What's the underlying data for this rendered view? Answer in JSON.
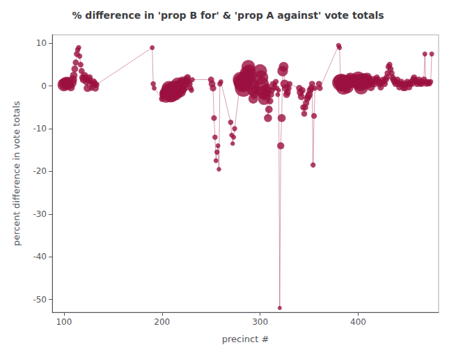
{
  "chart_data": {
    "type": "scatter",
    "title": "% difference in 'prop B for' & 'prop A against' vote totals",
    "xlabel": "precinct #",
    "ylabel": "percent difference in vote totals",
    "xlim": [
      88,
      482
    ],
    "ylim": [
      -53,
      12
    ],
    "xticks": [
      100,
      200,
      300,
      400
    ],
    "yticks": [
      10,
      0,
      -10,
      -20,
      -30,
      -40,
      -50
    ],
    "grid": false,
    "marker": "circle",
    "line_style": "solid",
    "color": "#9b1040",
    "x": [
      100,
      101,
      102,
      103,
      104,
      105,
      106,
      107,
      108,
      109,
      110,
      111,
      112,
      113,
      114,
      115,
      116,
      117,
      118,
      119,
      120,
      121,
      122,
      123,
      124,
      125,
      126,
      127,
      128,
      129,
      130,
      131,
      132,
      133,
      190,
      191,
      192,
      200,
      201,
      202,
      203,
      204,
      205,
      206,
      207,
      208,
      209,
      210,
      211,
      212,
      213,
      214,
      215,
      216,
      217,
      218,
      219,
      220,
      221,
      222,
      223,
      224,
      225,
      226,
      227,
      228,
      229,
      230,
      231,
      250,
      251,
      252,
      253,
      254,
      255,
      256,
      257,
      258,
      259,
      260,
      270,
      271,
      272,
      273,
      274,
      280,
      281,
      282,
      283,
      284,
      285,
      286,
      287,
      288,
      289,
      290,
      291,
      292,
      293,
      294,
      295,
      296,
      297,
      298,
      300,
      301,
      302,
      303,
      304,
      305,
      306,
      307,
      308,
      309,
      310,
      311,
      312,
      313,
      314,
      315,
      316,
      317,
      318,
      319,
      320,
      321,
      322,
      323,
      324,
      325,
      326,
      327,
      328,
      329,
      330,
      340,
      341,
      342,
      343,
      344,
      345,
      346,
      347,
      348,
      349,
      350,
      351,
      352,
      353,
      354,
      355,
      356,
      360,
      361,
      380,
      381,
      382,
      383,
      384,
      385,
      386,
      387,
      388,
      389,
      390,
      391,
      392,
      393,
      394,
      395,
      396,
      397,
      398,
      399,
      400,
      401,
      402,
      403,
      404,
      405,
      406,
      407,
      408,
      409,
      410,
      411,
      412,
      413,
      414,
      415,
      416,
      417,
      418,
      419,
      420,
      421,
      422,
      423,
      424,
      425,
      426,
      427,
      428,
      429,
      430,
      431,
      432,
      433,
      434,
      435,
      436,
      437,
      438,
      439,
      440,
      441,
      442,
      443,
      444,
      445,
      446,
      447,
      448,
      449,
      450,
      451,
      452,
      453,
      454,
      455,
      456,
      457,
      458,
      459,
      460,
      461,
      462,
      463,
      464,
      465,
      466,
      467,
      468,
      469,
      470,
      471,
      472,
      473,
      474,
      475
    ],
    "values": [
      0.3,
      0.5,
      0.8,
      0.4,
      1.0,
      0.6,
      0.2,
      -0.3,
      0.8,
      1.5,
      2.5,
      4.0,
      5.5,
      7.5,
      8.5,
      9.0,
      7.0,
      5.0,
      3.5,
      2.0,
      1.5,
      2.5,
      2.0,
      1.0,
      -0.5,
      1.5,
      2.0,
      1.0,
      -0.5,
      0.5,
      1.0,
      0.5,
      -0.5,
      0.3,
      9.0,
      0.5,
      -0.5,
      -3.0,
      -1.5,
      -2.0,
      -1.8,
      -2.5,
      -1.5,
      -1.0,
      -0.5,
      -1.5,
      -2.0,
      -1.8,
      -1.2,
      -0.8,
      -1.5,
      -1.0,
      -0.5,
      0.3,
      -0.8,
      -1.2,
      -0.5,
      0.5,
      1.0,
      0.5,
      -0.3,
      0.8,
      1.5,
      2.0,
      1.0,
      0.5,
      -0.5,
      -1.0,
      1.5,
      1.5,
      0.5,
      -0.5,
      -7.5,
      -12.0,
      -17.5,
      -15.5,
      -14.0,
      -19.5,
      0.5,
      1.0,
      -8.5,
      -11.5,
      -13.5,
      -12.0,
      -10.0,
      1.5,
      1.0,
      0.5,
      -0.5,
      0.8,
      1.5,
      2.0,
      3.0,
      4.5,
      3.5,
      2.0,
      0.5,
      -1.0,
      -3.0,
      -2.0,
      -1.0,
      0.5,
      -0.5,
      -1.5,
      3.5,
      2.0,
      0.5,
      -1.5,
      -3.0,
      -2.0,
      -1.0,
      -0.5,
      -7.5,
      -5.5,
      -3.5,
      -2.0,
      -1.0,
      0.5,
      -0.5,
      0.3,
      1.0,
      -0.5,
      -2.0,
      -1.0,
      -52.0,
      -14.0,
      -7.5,
      3.5,
      4.5,
      0.5,
      -0.5,
      -2.0,
      -1.5,
      -0.5,
      0.5,
      -0.5,
      -1.5,
      -2.5,
      -1.0,
      -5.0,
      -6.5,
      -5.0,
      -4.0,
      -3.0,
      -2.5,
      -2.0,
      -1.0,
      -0.5,
      0.5,
      -18.5,
      -7.0,
      -0.5,
      0.5,
      -0.5,
      9.5,
      9.0,
      0.8,
      1.0,
      0.5,
      -0.3,
      0.8,
      1.0,
      0.5,
      -0.3,
      0.8,
      1.5,
      2.0,
      1.5,
      1.0,
      0.5,
      1.5,
      2.0,
      1.0,
      0.5,
      1.5,
      1.0,
      0.5,
      -0.3,
      0.8,
      1.5,
      1.0,
      0.5,
      1.5,
      2.0,
      1.5,
      1.0,
      0.5,
      -0.3,
      0.8,
      1.5,
      1.0,
      0.5,
      1.5,
      2.0,
      1.5,
      1.0,
      0.5,
      -0.3,
      0.8,
      1.5,
      1.0,
      0.5,
      1.5,
      2.0,
      3.0,
      4.5,
      5.0,
      4.0,
      3.0,
      2.0,
      1.5,
      1.0,
      0.5,
      1.0,
      1.5,
      0.5,
      -0.3,
      0.5,
      1.0,
      0.5,
      -0.5,
      0.3,
      -0.5,
      0.5,
      1.0,
      0.5,
      -0.3,
      0.5,
      1.0,
      0.5,
      1.5,
      2.0,
      1.5,
      1.0,
      0.5,
      1.0,
      1.5,
      0.5,
      1.0,
      0.5,
      1.0,
      1.5,
      7.5,
      0.5,
      1.0,
      0.5,
      1.0,
      0.5,
      1.0,
      7.5
    ],
    "sizes": [
      180,
      160,
      140,
      120,
      100,
      90,
      80,
      70,
      100,
      80,
      60,
      50,
      40,
      35,
      30,
      28,
      30,
      35,
      40,
      50,
      60,
      50,
      45,
      55,
      65,
      55,
      45,
      35,
      30,
      40,
      50,
      60,
      50,
      40,
      25,
      30,
      25,
      40,
      50,
      60,
      130,
      160,
      180,
      200,
      220,
      240,
      260,
      280,
      300,
      320,
      280,
      260,
      240,
      220,
      200,
      180,
      160,
      140,
      120,
      100,
      80,
      70,
      60,
      50,
      45,
      40,
      35,
      30,
      25,
      40,
      50,
      45,
      35,
      30,
      25,
      28,
      25,
      22,
      30,
      25,
      30,
      25,
      22,
      25,
      28,
      260,
      280,
      300,
      320,
      300,
      280,
      260,
      240,
      200,
      180,
      160,
      140,
      120,
      100,
      80,
      60,
      50,
      45,
      40,
      200,
      220,
      200,
      180,
      160,
      140,
      120,
      100,
      70,
      60,
      50,
      45,
      40,
      35,
      30,
      25,
      35,
      30,
      25,
      22,
      18,
      55,
      70,
      120,
      100,
      80,
      60,
      50,
      45,
      40,
      35,
      45,
      55,
      50,
      45,
      40,
      38,
      40,
      42,
      45,
      50,
      55,
      50,
      45,
      40,
      28,
      35,
      30,
      40,
      35,
      28,
      25,
      300,
      280,
      260,
      240,
      220,
      200,
      180,
      160,
      140,
      120,
      100,
      90,
      80,
      70,
      60,
      55,
      50,
      45,
      280,
      260,
      240,
      220,
      200,
      180,
      160,
      140,
      120,
      100,
      90,
      80,
      70,
      65,
      60,
      55,
      50,
      45,
      40,
      38,
      40,
      42,
      45,
      42,
      40,
      38,
      40,
      42,
      45,
      42,
      40,
      38,
      35,
      38,
      40,
      42,
      45,
      42,
      40,
      38,
      40,
      42,
      40,
      38,
      40,
      38,
      40,
      42,
      40,
      38,
      40,
      38,
      40,
      42,
      40,
      38,
      40,
      42,
      40,
      38,
      40,
      42,
      40,
      38,
      40,
      38,
      40,
      42,
      25,
      30,
      35,
      30,
      28,
      25,
      28,
      25
    ]
  }
}
